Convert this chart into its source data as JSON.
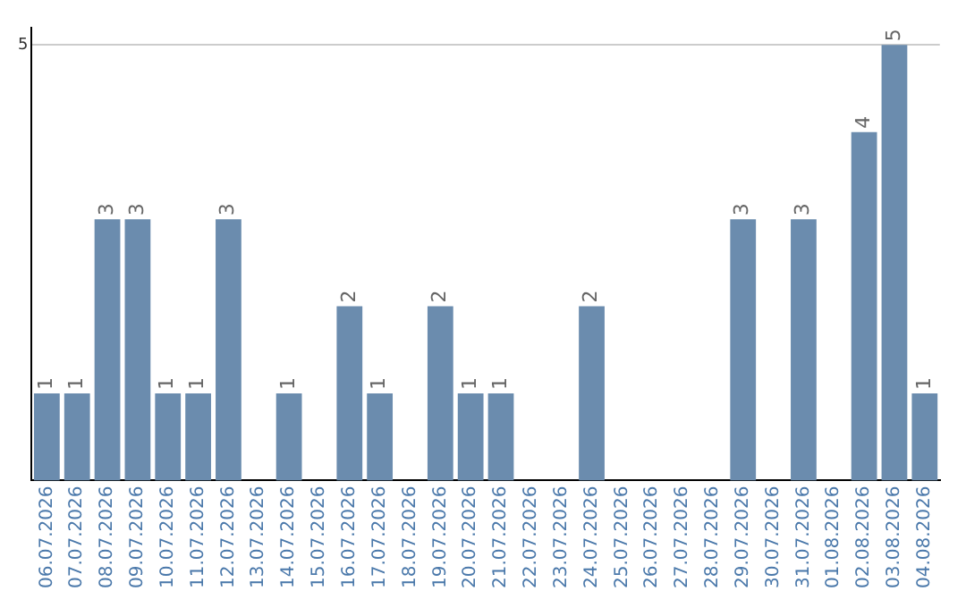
{
  "chart_data": {
    "type": "bar",
    "categories": [
      "06.07.2026",
      "07.07.2026",
      "08.07.2026",
      "09.07.2026",
      "10.07.2026",
      "11.07.2026",
      "12.07.2026",
      "13.07.2026",
      "14.07.2026",
      "15.07.2026",
      "16.07.2026",
      "17.07.2026",
      "18.07.2026",
      "19.07.2026",
      "20.07.2026",
      "21.07.2026",
      "22.07.2026",
      "23.07.2026",
      "24.07.2026",
      "25.07.2026",
      "26.07.2026",
      "27.07.2026",
      "28.07.2026",
      "29.07.2026",
      "30.07.2026",
      "31.07.2026",
      "01.08.2026",
      "02.08.2026",
      "03.08.2026",
      "04.08.2026"
    ],
    "values": [
      1,
      1,
      3,
      3,
      1,
      1,
      3,
      null,
      1,
      null,
      2,
      1,
      null,
      2,
      1,
      1,
      null,
      null,
      2,
      null,
      null,
      null,
      null,
      3,
      null,
      3,
      null,
      4,
      5,
      1
    ],
    "color": "#6b8cae",
    "ylim": [
      0,
      5.2
    ],
    "yticks": [
      5
    ],
    "grid": "y",
    "data_labels": true,
    "legend": false
  }
}
